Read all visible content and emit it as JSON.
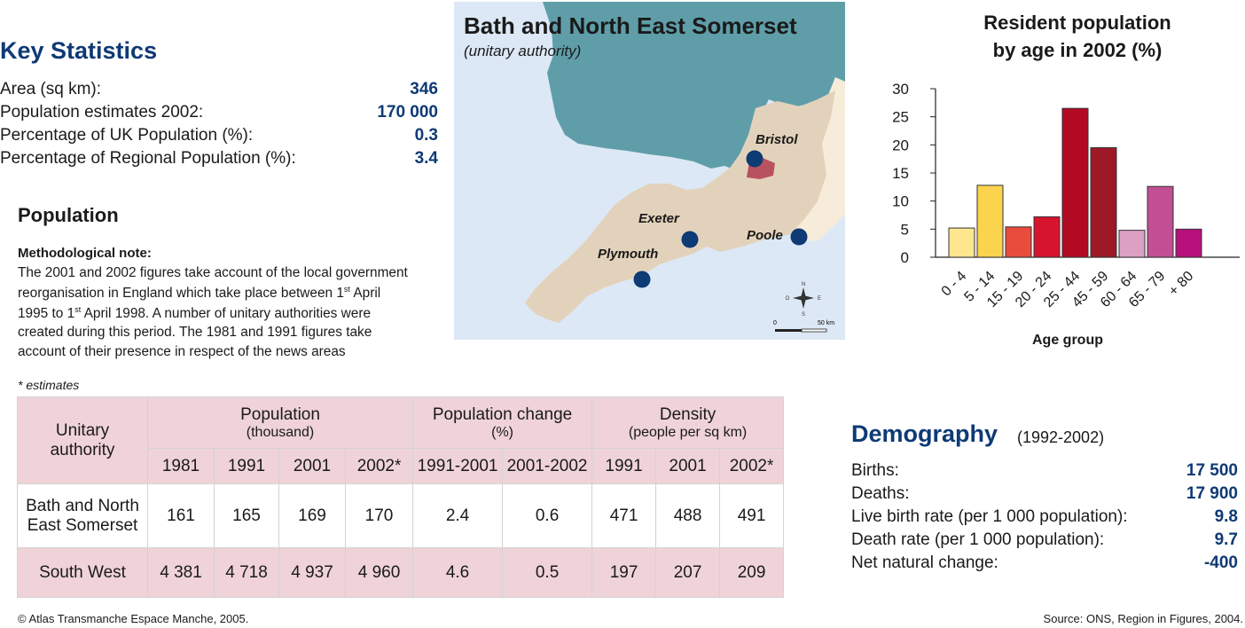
{
  "key_statistics": {
    "title": "Key Statistics",
    "rows": [
      {
        "label": "Area (sq km):",
        "value": "346"
      },
      {
        "label": "Population estimates 2002:",
        "value": "170 000"
      },
      {
        "label": "Percentage of UK Population (%):",
        "value": "0.3"
      },
      {
        "label": "Percentage of Regional Population (%):",
        "value": "3.4"
      }
    ]
  },
  "population": {
    "title": "Population",
    "note_title": "Methodological note:",
    "note_lines": [
      "The 2001 and 2002 figures take account of the local government",
      "reorganisation in England which take place between 1",
      "st",
      " April",
      "1995 to 1",
      "st",
      " April 1998. A number of unitary authorities were",
      "created during this period. The 1981 and 1991 figures take",
      "account of their presence in respect of the news areas"
    ],
    "estimates_note": "* estimates"
  },
  "table": {
    "unitary_authority": "Unitary authority",
    "groups": [
      {
        "label": "Population",
        "sub": "(thousand)"
      },
      {
        "label": "Population change",
        "sub": "(%)"
      },
      {
        "label": "Density",
        "sub": "(people per sq km)"
      }
    ],
    "years": [
      "1981",
      "1991",
      "2001",
      "2002*",
      "1991-2001",
      "2001-2002",
      "1991",
      "2001",
      "2002*"
    ],
    "rows": [
      {
        "name": "Bath and North East Somerset",
        "values": [
          "161",
          "165",
          "169",
          "170",
          "2.4",
          "0.6",
          "471",
          "488",
          "491"
        ]
      },
      {
        "name": "South West",
        "values": [
          "4 381",
          "4 718",
          "4 937",
          "4 960",
          "4.6",
          "0.5",
          "197",
          "207",
          "209"
        ]
      }
    ]
  },
  "map": {
    "title": "Bath and North East Somerset",
    "subtitle": "(unitary authority)",
    "cities": [
      "Bristol",
      "Exeter",
      "Poole",
      "Plymouth"
    ],
    "scale_start": "0",
    "scale_end": "50 km",
    "compass": {
      "n": "N",
      "s": "S",
      "e": "E",
      "w": "O"
    },
    "colors": {
      "sea": "#dce8f5",
      "wales": "#5f9ea9",
      "region": "#e3d2bb",
      "highlight": "#b8525f",
      "neighbour": "#f7ecd9",
      "city_dot": "#0e3a75"
    }
  },
  "chart_data": {
    "type": "bar",
    "title": "Resident population by age in 2002 (%)",
    "title_lines": [
      "Resident population",
      "by age in 2002 (%)"
    ],
    "xlabel": "Age group",
    "ylabel": "",
    "ylim": [
      0,
      30
    ],
    "yticks": [
      0,
      5,
      10,
      15,
      20,
      25,
      30
    ],
    "categories": [
      "0 - 4",
      "5 - 14",
      "15 - 19",
      "20 - 24",
      "25 - 44",
      "45 - 59",
      "60 - 64",
      "65 - 79",
      "+ 80"
    ],
    "values": [
      5.2,
      12.8,
      5.4,
      7.2,
      26.5,
      19.5,
      4.8,
      12.6,
      5.0
    ],
    "colors": [
      "#fde68d",
      "#fcd34d",
      "#e94c3d",
      "#d7142e",
      "#b30a24",
      "#9b1a26",
      "#dca0c5",
      "#c24f94",
      "#b8107a"
    ],
    "grid": false
  },
  "demography": {
    "title": "Demography",
    "period": "(1992-2002)",
    "rows": [
      {
        "label": "Births:",
        "value": "17 500"
      },
      {
        "label": "Deaths:",
        "value": "17 900"
      },
      {
        "label": "Live birth rate (per 1 000 population):",
        "value": "9.8"
      },
      {
        "label": "Death rate (per 1 000 population):",
        "value": "9.7"
      },
      {
        "label": "Net natural change:",
        "value": "-400"
      }
    ]
  },
  "footer": {
    "copyright": "© Atlas Transmanche Espace Manche, 2005.",
    "source": "Source: ONS, Region in Figures, 2004."
  }
}
